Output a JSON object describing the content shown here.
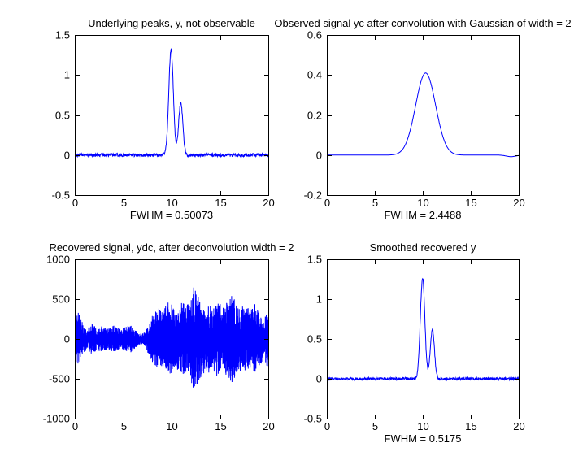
{
  "figure": {
    "background_color": "#ffffff",
    "axis_color": "#000000",
    "line_color": "#0000ff"
  },
  "chart_data": [
    {
      "type": "line",
      "title": "Underlying peaks, y, not observable",
      "xlabel": "FWHM = 0.50073",
      "fwhm": 0.50073,
      "xlim": [
        0,
        20
      ],
      "ylim": [
        -0.5,
        1.5
      ],
      "xticks": [
        0,
        5,
        10,
        15,
        20
      ],
      "xtick_labels": [
        "0",
        "5",
        "10",
        "15",
        "20"
      ],
      "yticks": [
        -0.5,
        0,
        0.5,
        1,
        1.5
      ],
      "ytick_labels": [
        "-0.5",
        "0",
        "0.5",
        "1",
        "1.5"
      ],
      "grid": false,
      "legend": null,
      "line_color": "#0000ff",
      "series": [
        {
          "name": "y",
          "model": "peaks+noise",
          "baseline": 0,
          "noise_amplitude": 0.02,
          "peaks": [
            {
              "center": 9.95,
              "height": 1.32,
              "fwhm": 0.55
            },
            {
              "center": 10.95,
              "height": 0.66,
              "fwhm": 0.5
            }
          ]
        }
      ]
    },
    {
      "type": "line",
      "title": "Observed signal yc after convolution with Gaussian of width = 2",
      "xlabel": "FWHM = 2.4488",
      "fwhm": 2.4488,
      "xlim": [
        0,
        20
      ],
      "ylim": [
        -0.2,
        0.6
      ],
      "xticks": [
        0,
        5,
        10,
        15,
        20
      ],
      "xtick_labels": [
        "0",
        "5",
        "10",
        "15",
        "20"
      ],
      "yticks": [
        -0.2,
        0,
        0.2,
        0.4,
        0.6
      ],
      "ytick_labels": [
        "-0.2",
        "0",
        "0.2",
        "0.4",
        "0.6"
      ],
      "grid": false,
      "legend": null,
      "line_color": "#0000ff",
      "series": [
        {
          "name": "yc",
          "model": "peaks+noise",
          "baseline": 0,
          "noise_amplitude": 0,
          "peaks": [
            {
              "center": 10.3,
              "height": 0.41,
              "fwhm": 2.45
            },
            {
              "center": 19.2,
              "height": -0.008,
              "fwhm": 1.2
            }
          ]
        }
      ]
    },
    {
      "type": "line",
      "title": "Recovered signal, ydc, after deconvolution width = 2",
      "xlabel": "",
      "xlim": [
        0,
        20
      ],
      "ylim": [
        -1000,
        1000
      ],
      "xticks": [
        0,
        5,
        10,
        15,
        20
      ],
      "xtick_labels": [
        "0",
        "5",
        "10",
        "15",
        "20"
      ],
      "yticks": [
        -1000,
        -500,
        0,
        500,
        1000
      ],
      "ytick_labels": [
        "-1000",
        "-500",
        "0",
        "500",
        "1000"
      ],
      "grid": false,
      "legend": null,
      "line_color": "#0000ff",
      "series": [
        {
          "name": "ydc",
          "model": "noise-envelope",
          "envelope": [
            [
              0,
              300
            ],
            [
              0.4,
              330
            ],
            [
              0.8,
              200
            ],
            [
              1.3,
              130
            ],
            [
              1.8,
              200
            ],
            [
              2.3,
              140
            ],
            [
              2.8,
              170
            ],
            [
              3.4,
              130
            ],
            [
              4.0,
              170
            ],
            [
              4.6,
              130
            ],
            [
              5.2,
              150
            ],
            [
              5.7,
              180
            ],
            [
              6.3,
              110
            ],
            [
              6.9,
              65
            ],
            [
              7.3,
              90
            ],
            [
              7.7,
              240
            ],
            [
              8.1,
              310
            ],
            [
              8.6,
              390
            ],
            [
              9.1,
              350
            ],
            [
              9.6,
              460
            ],
            [
              10.1,
              430
            ],
            [
              10.6,
              390
            ],
            [
              11.1,
              460
            ],
            [
              11.6,
              430
            ],
            [
              12.0,
              520
            ],
            [
              12.3,
              660
            ],
            [
              12.7,
              560
            ],
            [
              13.2,
              460
            ],
            [
              13.8,
              430
            ],
            [
              14.3,
              390
            ],
            [
              14.7,
              480
            ],
            [
              15.2,
              430
            ],
            [
              15.7,
              460
            ],
            [
              16.1,
              570
            ],
            [
              16.6,
              490
            ],
            [
              17.1,
              410
            ],
            [
              17.6,
              430
            ],
            [
              18.1,
              360
            ],
            [
              18.6,
              440
            ],
            [
              19.1,
              340
            ],
            [
              19.5,
              310
            ],
            [
              20,
              360
            ]
          ]
        }
      ]
    },
    {
      "type": "line",
      "title": "Smoothed recovered y",
      "xlabel": "FWHM = 0.5175",
      "fwhm": 0.5175,
      "xlim": [
        0,
        20
      ],
      "ylim": [
        -0.5,
        1.5
      ],
      "xticks": [
        0,
        5,
        10,
        15,
        20
      ],
      "xtick_labels": [
        "0",
        "5",
        "10",
        "15",
        "20"
      ],
      "yticks": [
        -0.5,
        0,
        0.5,
        1,
        1.5
      ],
      "ytick_labels": [
        "-0.5",
        "0",
        "0.5",
        "1",
        "1.5"
      ],
      "grid": false,
      "legend": null,
      "line_color": "#0000ff",
      "series": [
        {
          "name": "y smoothed",
          "model": "peaks+noise",
          "baseline": 0,
          "noise_amplitude": 0.018,
          "peaks": [
            {
              "center": 9.98,
              "height": 1.27,
              "fwhm": 0.55
            },
            {
              "center": 11.0,
              "height": 0.62,
              "fwhm": 0.5
            }
          ]
        }
      ]
    }
  ]
}
